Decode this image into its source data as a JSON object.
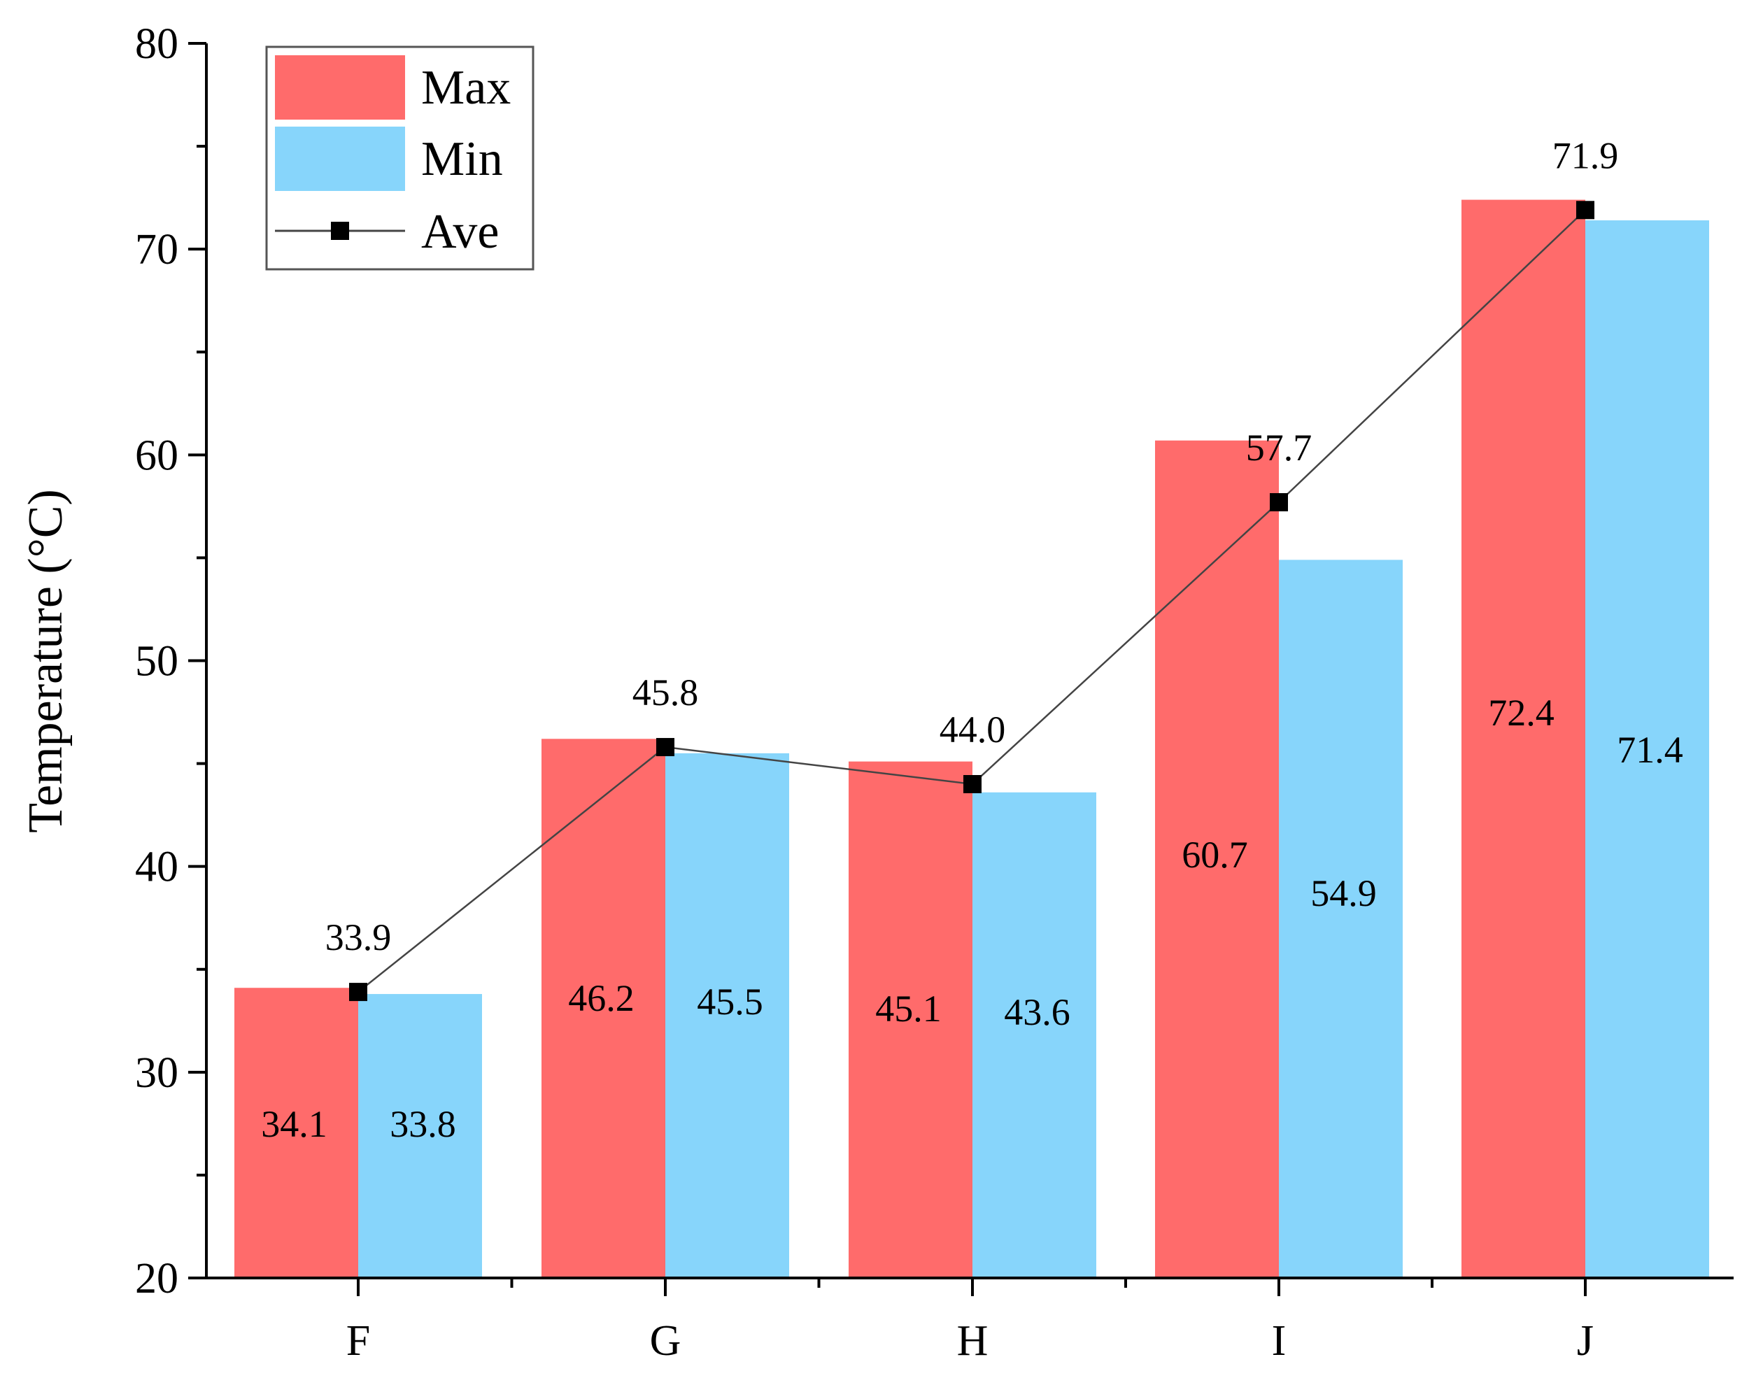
{
  "chart_data": {
    "type": "bar",
    "title": "",
    "xlabel": "",
    "ylabel": "Temperature (°C)",
    "ylim": [
      20,
      80
    ],
    "yticks": [
      "20",
      "30",
      "40",
      "50",
      "60",
      "70",
      "80"
    ],
    "categories": [
      "F",
      "G",
      "H",
      "I",
      "J"
    ],
    "series": [
      {
        "name": "Max",
        "kind": "bar",
        "color": "#ff6b6b",
        "values": [
          34.1,
          46.2,
          45.1,
          60.7,
          72.4
        ],
        "labels": [
          "34.1",
          "46.2",
          "45.1",
          "60.7",
          "72.4"
        ]
      },
      {
        "name": "Min",
        "kind": "bar",
        "color": "#87d5fb",
        "values": [
          33.8,
          45.5,
          43.6,
          54.9,
          71.4
        ],
        "labels": [
          "33.8",
          "45.5",
          "43.6",
          "54.9",
          "71.4"
        ]
      },
      {
        "name": "Ave",
        "kind": "line",
        "color": "#000000",
        "values": [
          33.9,
          45.8,
          44.0,
          57.7,
          71.9
        ],
        "labels": [
          "33.9",
          "45.8",
          "44.0",
          "57.7",
          "71.9"
        ]
      }
    ],
    "legend": {
      "placement": "top-left",
      "entries": [
        "Max",
        "Min",
        "Ave"
      ]
    },
    "grid": false
  }
}
